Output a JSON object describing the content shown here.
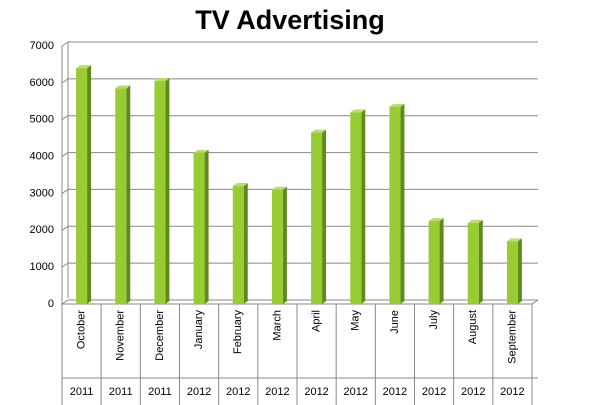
{
  "chart_data": {
    "type": "bar",
    "title": "TV Advertising",
    "categories": [
      "October",
      "November",
      "December",
      "January",
      "February",
      "March",
      "April",
      "May",
      "June",
      "July",
      "August",
      "September"
    ],
    "years": [
      "2011",
      "2011",
      "2011",
      "2012",
      "2012",
      "2012",
      "2012",
      "2012",
      "2012",
      "2012",
      "2012",
      "2012"
    ],
    "values": [
      6400,
      5850,
      6050,
      4100,
      3200,
      3100,
      4650,
      5200,
      5350,
      2250,
      2200,
      1700
    ],
    "color": "#99cc33",
    "ylim": [
      0,
      7000
    ],
    "yticks": [
      0,
      1000,
      2000,
      3000,
      4000,
      5000,
      6000,
      7000
    ],
    "grid": true
  }
}
